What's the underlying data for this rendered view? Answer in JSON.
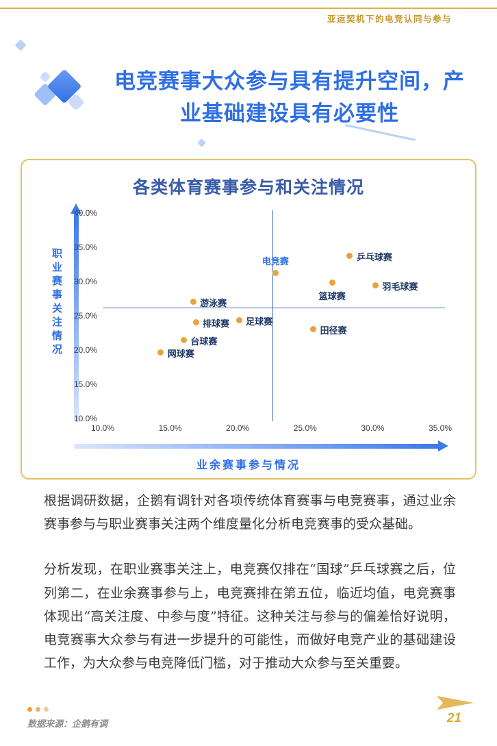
{
  "header": {
    "title": "亚运契机下的电竞认同与参与"
  },
  "title": {
    "text": "电竞赛事大众参与具有提升空间，产\n业基础建设具有必要性"
  },
  "colors": {
    "gold_accent": "#D9A93E",
    "blue_accent": "#2F6FE4",
    "chart_title_blue": "#3A5CA8",
    "dot": "#E8A33C",
    "label_navy": "#1F3864",
    "mean_line": "#4472C4"
  },
  "chart_data": {
    "type": "scatter",
    "title": "各类体育赛事参与和关注情况",
    "xlabel": "业余赛事参与情况",
    "ylabel": "职业赛事关注情况",
    "xlim": [
      10,
      35
    ],
    "ylim": [
      10,
      40
    ],
    "x_ticks": [
      "10.0%",
      "15.0%",
      "20.0%",
      "25.0%",
      "30.0%",
      "35.0%"
    ],
    "y_ticks": [
      "40.0%",
      "35.0%",
      "30.0%",
      "25.0%",
      "20.0%",
      "15.0%",
      "10.0%"
    ],
    "mean_x": 22.6,
    "mean_y": 26.3,
    "points": [
      {
        "label": "电竞赛",
        "x": 22.8,
        "y": 31.4,
        "label_pos": "above",
        "highlight": true
      },
      {
        "label": "乒乓球赛",
        "x": 28.3,
        "y": 33.9,
        "label_pos": "right"
      },
      {
        "label": "篮球赛",
        "x": 27.0,
        "y": 30.0,
        "label_pos": "below"
      },
      {
        "label": "羽毛球赛",
        "x": 30.2,
        "y": 29.6,
        "label_pos": "right"
      },
      {
        "label": "游泳赛",
        "x": 16.7,
        "y": 27.2,
        "label_pos": "right"
      },
      {
        "label": "足球赛",
        "x": 20.1,
        "y": 24.5,
        "label_pos": "right"
      },
      {
        "label": "排球赛",
        "x": 16.9,
        "y": 24.2,
        "label_pos": "right"
      },
      {
        "label": "田径赛",
        "x": 25.6,
        "y": 23.2,
        "label_pos": "right"
      },
      {
        "label": "台球赛",
        "x": 16.0,
        "y": 21.6,
        "label_pos": "right"
      },
      {
        "label": "网球赛",
        "x": 14.3,
        "y": 19.8,
        "label_pos": "right"
      }
    ]
  },
  "paragraphs": [
    "根据调研数据，企鹅有调针对各项传统体育赛事与电竞赛事，通过业余赛事参与与职业赛事关注两个维度量化分析电竞赛事的受众基础。",
    "分析发现，在职业赛事关注上，电竞赛仅排在“国球”乒乓球赛之后，位列第二，在业余赛事参与上，电竞赛排在第五位，临近均值，电竞赛事体现出“高关注度、中参与度”特征。这种关注与参与的偏差恰好说明，电竞赛事大众参与有进一步提升的可能性，而做好电竞产业的基础建设工作，为大众参与电竞降低门槛，对于推动大众参与至关重要。"
  ],
  "footer": {
    "source": "数据来源：企鹅有调",
    "page_number": "21"
  }
}
